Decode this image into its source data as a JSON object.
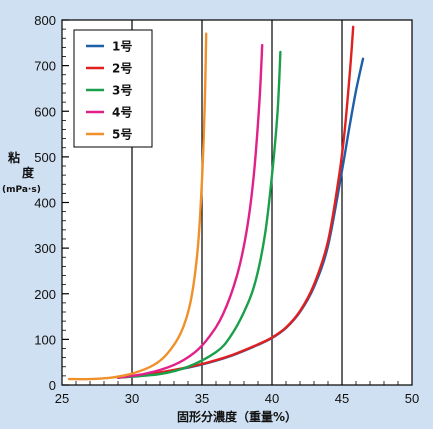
{
  "chart_data": {
    "type": "line",
    "title": "",
    "xlabel": "固形分濃度（重量%）",
    "ylabel_line1": "粘",
    "ylabel_line2": "度",
    "ylabel_unit": "(mPa·s)",
    "xlim": [
      25,
      50
    ],
    "ylim": [
      0,
      800
    ],
    "x_ticks": [
      "25",
      "30",
      "35",
      "40",
      "45",
      "50"
    ],
    "y_ticks": [
      "0",
      "100",
      "200",
      "300",
      "400",
      "500",
      "600",
      "700",
      "800"
    ],
    "grid": "vertical major lines",
    "legend_position": "top-left",
    "background_color": "#cfe0f2",
    "series": [
      {
        "name": "1号",
        "color": "#1f5fa8",
        "points": [
          [
            29,
            16
          ],
          [
            31,
            22
          ],
          [
            33,
            32
          ],
          [
            35,
            45
          ],
          [
            37,
            63
          ],
          [
            39,
            88
          ],
          [
            40,
            103
          ],
          [
            41,
            125
          ],
          [
            42,
            160
          ],
          [
            43,
            215
          ],
          [
            44,
            305
          ],
          [
            45,
            470
          ],
          [
            45.5,
            560
          ],
          [
            46,
            645
          ],
          [
            46.5,
            715
          ]
        ]
      },
      {
        "name": "2号",
        "color": "#e02020",
        "points": [
          [
            29,
            17
          ],
          [
            31,
            23
          ],
          [
            33,
            33
          ],
          [
            35,
            46
          ],
          [
            37,
            64
          ],
          [
            39,
            89
          ],
          [
            40,
            104
          ],
          [
            41,
            126
          ],
          [
            42,
            162
          ],
          [
            43,
            220
          ],
          [
            44,
            315
          ],
          [
            44.8,
            460
          ],
          [
            45.2,
            560
          ],
          [
            45.6,
            700
          ],
          [
            45.8,
            785
          ]
        ]
      },
      {
        "name": "3号",
        "color": "#1aa04a",
        "points": [
          [
            29,
            16
          ],
          [
            32,
            24
          ],
          [
            34,
            40
          ],
          [
            36,
            72
          ],
          [
            37,
            105
          ],
          [
            38,
            160
          ],
          [
            38.8,
            225
          ],
          [
            39.5,
            330
          ],
          [
            40,
            460
          ],
          [
            40.4,
            600
          ],
          [
            40.6,
            730
          ]
        ]
      },
      {
        "name": "4号",
        "color": "#e0218a",
        "points": [
          [
            29,
            16
          ],
          [
            31,
            25
          ],
          [
            33,
            44
          ],
          [
            34.5,
            72
          ],
          [
            35.5,
            105
          ],
          [
            36.5,
            155
          ],
          [
            37.5,
            240
          ],
          [
            38.2,
            340
          ],
          [
            38.7,
            460
          ],
          [
            39.1,
            620
          ],
          [
            39.3,
            745
          ]
        ]
      },
      {
        "name": "5号",
        "color": "#f0902a",
        "points": [
          [
            25.5,
            13
          ],
          [
            27,
            13
          ],
          [
            28.5,
            16
          ],
          [
            30,
            25
          ],
          [
            31.5,
            43
          ],
          [
            32.5,
            68
          ],
          [
            33.5,
            115
          ],
          [
            34.2,
            185
          ],
          [
            34.7,
            300
          ],
          [
            35,
            450
          ],
          [
            35.2,
            620
          ],
          [
            35.3,
            770
          ]
        ]
      }
    ]
  }
}
